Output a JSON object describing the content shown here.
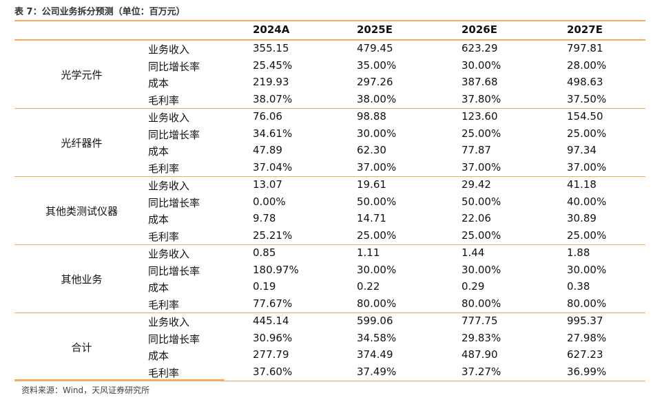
{
  "caption": "表 7：公司业务拆分预测（单位：百万元）",
  "headers": [
    "2024A",
    "2025E",
    "2026E",
    "2027E"
  ],
  "groups": [
    {
      "name": "光学元件",
      "rows": [
        {
          "metric": "业务收入",
          "values": [
            "355.15",
            "479.45",
            "623.29",
            "797.81"
          ]
        },
        {
          "metric": "同比增长率",
          "values": [
            "25.45%",
            "35.00%",
            "30.00%",
            "28.00%"
          ]
        },
        {
          "metric": "成本",
          "values": [
            "219.93",
            "297.26",
            "387.68",
            "498.63"
          ]
        },
        {
          "metric": "毛利率",
          "values": [
            "38.07%",
            "38.00%",
            "37.80%",
            "37.50%"
          ]
        }
      ]
    },
    {
      "name": "光纤器件",
      "rows": [
        {
          "metric": "业务收入",
          "values": [
            "76.06",
            "98.88",
            "123.60",
            "154.50"
          ]
        },
        {
          "metric": "同比增长率",
          "values": [
            "34.61%",
            "30.00%",
            "25.00%",
            "25.00%"
          ]
        },
        {
          "metric": "成本",
          "values": [
            "47.89",
            "62.30",
            "77.87",
            "97.34"
          ]
        },
        {
          "metric": "毛利率",
          "values": [
            "37.04%",
            "37.00%",
            "37.00%",
            "37.00%"
          ]
        }
      ]
    },
    {
      "name": "其他类测试仪器",
      "rows": [
        {
          "metric": "业务收入",
          "values": [
            "13.07",
            "19.61",
            "29.42",
            "41.18"
          ]
        },
        {
          "metric": "同比增长率",
          "values": [
            "0.00%",
            "50.00%",
            "50.00%",
            "40.00%"
          ]
        },
        {
          "metric": "成本",
          "values": [
            "9.78",
            "14.71",
            "22.06",
            "30.89"
          ]
        },
        {
          "metric": "毛利率",
          "values": [
            "25.21%",
            "25.00%",
            "25.00%",
            "25.00%"
          ]
        }
      ]
    },
    {
      "name": "其他业务",
      "rows": [
        {
          "metric": "业务收入",
          "values": [
            "0.85",
            "1.11",
            "1.44",
            "1.88"
          ]
        },
        {
          "metric": "同比增长率",
          "values": [
            "180.97%",
            "30.00%",
            "30.00%",
            "30.00%"
          ]
        },
        {
          "metric": "成本",
          "values": [
            "0.19",
            "0.22",
            "0.29",
            "0.38"
          ]
        },
        {
          "metric": "毛利率",
          "values": [
            "77.67%",
            "80.00%",
            "80.00%",
            "80.00%"
          ]
        }
      ]
    },
    {
      "name": "合计",
      "rows": [
        {
          "metric": "业务收入",
          "values": [
            "445.14",
            "599.06",
            "777.75",
            "995.37"
          ]
        },
        {
          "metric": "同比增长率",
          "values": [
            "30.96%",
            "34.58%",
            "29.83%",
            "27.98%"
          ]
        },
        {
          "metric": "成本",
          "values": [
            "277.79",
            "374.49",
            "487.90",
            "627.23"
          ]
        },
        {
          "metric": "毛利率",
          "values": [
            "37.60%",
            "37.49%",
            "37.27%",
            "36.99%"
          ]
        }
      ]
    }
  ],
  "source": "资料来源：Wind，天风证券研究所",
  "colors": {
    "rule": "#f7a85b"
  }
}
